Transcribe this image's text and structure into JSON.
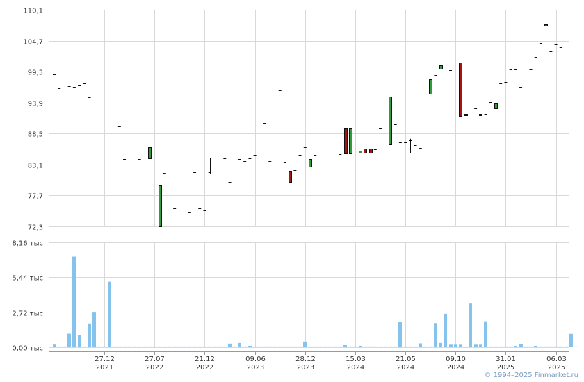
{
  "chart_data": [
    {
      "type": "candlestick",
      "ylim": [
        72.3,
        110.1
      ],
      "yticks": [
        72.3,
        77.7,
        83.1,
        88.5,
        93.9,
        99.3,
        104.7,
        110.1
      ],
      "ytick_labels": [
        "72,3",
        "77,7",
        "83,1",
        "88,5",
        "93,9",
        "99,3",
        "104,7",
        "110,1"
      ],
      "x_ticks": [
        {
          "day": "27.12",
          "year": "2021",
          "index": 10
        },
        {
          "day": "27.07",
          "year": "2022",
          "index": 20
        },
        {
          "day": "21.12",
          "year": "2022",
          "index": 30
        },
        {
          "day": "09.06",
          "year": "2023",
          "index": 40
        },
        {
          "day": "28.12",
          "year": "2023",
          "index": 50
        },
        {
          "day": "15.03",
          "year": "2024",
          "index": 60
        },
        {
          "day": "21.05",
          "year": "2024",
          "index": 70
        },
        {
          "day": "09.10",
          "year": "2024",
          "index": 80
        },
        {
          "day": "31.01",
          "year": "2025",
          "index": 90
        },
        {
          "day": "06.03",
          "year": "2025",
          "index": 100
        }
      ],
      "candles": [
        {
          "i": 0,
          "open": 98.8,
          "close": 98.8
        },
        {
          "i": 1,
          "open": 96.4,
          "close": 96.4
        },
        {
          "i": 2,
          "open": 95.0,
          "close": 95.0
        },
        {
          "i": 3,
          "open": 96.8,
          "close": 96.8
        },
        {
          "i": 4,
          "open": 96.6,
          "close": 96.6
        },
        {
          "i": 5,
          "open": 96.9,
          "close": 96.9
        },
        {
          "i": 6,
          "open": 97.2,
          "close": 97.2
        },
        {
          "i": 7,
          "open": 94.8,
          "close": 94.8
        },
        {
          "i": 8,
          "open": 93.9,
          "close": 93.9
        },
        {
          "i": 9,
          "open": 93.0,
          "close": 93.0
        },
        {
          "i": 11,
          "open": 88.7,
          "close": 88.5
        },
        {
          "i": 12,
          "open": 93.0,
          "close": 93.0
        },
        {
          "i": 13,
          "open": 89.8,
          "close": 89.8
        },
        {
          "i": 14,
          "open": 84.0,
          "close": 84.0
        },
        {
          "i": 15,
          "open": 85.1,
          "close": 85.1
        },
        {
          "i": 16,
          "open": 82.4,
          "close": 82.4
        },
        {
          "i": 17,
          "open": 84.1,
          "close": 84.1
        },
        {
          "i": 18,
          "open": 82.4,
          "close": 82.4
        },
        {
          "i": 19,
          "open": 84.2,
          "close": 86.1
        },
        {
          "i": 20,
          "open": 84.3,
          "close": 84.3
        },
        {
          "i": 21,
          "open": 72.3,
          "close": 79.4
        },
        {
          "i": 22,
          "open": 81.6,
          "close": 81.6
        },
        {
          "i": 23,
          "open": 78.4,
          "close": 78.4
        },
        {
          "i": 24,
          "open": 75.4,
          "close": 75.4
        },
        {
          "i": 25,
          "open": 78.4,
          "close": 78.4
        },
        {
          "i": 26,
          "open": 78.4,
          "close": 78.4
        },
        {
          "i": 27,
          "open": 74.8,
          "close": 74.8
        },
        {
          "i": 28,
          "open": 81.7,
          "close": 81.7
        },
        {
          "i": 29,
          "open": 75.4,
          "close": 75.4
        },
        {
          "i": 30,
          "open": 75.1,
          "close": 75.1
        },
        {
          "i": 31,
          "open": 81.7,
          "close": 81.7,
          "high": 84.3,
          "low": 81.5
        },
        {
          "i": 32,
          "open": 78.4,
          "close": 78.4
        },
        {
          "i": 33,
          "open": 76.8,
          "close": 76.8
        },
        {
          "i": 34,
          "open": 84.2,
          "close": 84.2
        },
        {
          "i": 35,
          "open": 80.1,
          "close": 80.1
        },
        {
          "i": 36,
          "open": 79.9,
          "close": 79.9
        },
        {
          "i": 37,
          "open": 84.1,
          "close": 84.1
        },
        {
          "i": 38,
          "open": 83.7,
          "close": 83.7
        },
        {
          "i": 39,
          "open": 84.2,
          "close": 84.2
        },
        {
          "i": 40,
          "open": 84.8,
          "close": 84.8
        },
        {
          "i": 41,
          "open": 84.7,
          "close": 84.7
        },
        {
          "i": 42,
          "open": 90.4,
          "close": 90.4
        },
        {
          "i": 43,
          "open": 83.7,
          "close": 83.7
        },
        {
          "i": 44,
          "open": 90.2,
          "close": 90.2
        },
        {
          "i": 45,
          "open": 96.0,
          "close": 96.0
        },
        {
          "i": 46,
          "open": 83.6,
          "close": 83.6
        },
        {
          "i": 47,
          "open": 82.0,
          "close": 80.1
        },
        {
          "i": 48,
          "open": 82.1,
          "close": 82.1
        },
        {
          "i": 49,
          "open": 84.8,
          "close": 84.8
        },
        {
          "i": 50,
          "open": 86.1,
          "close": 86.1
        },
        {
          "i": 51,
          "open": 82.8,
          "close": 84.1
        },
        {
          "i": 52,
          "open": 84.8,
          "close": 84.8
        },
        {
          "i": 53,
          "open": 85.9,
          "close": 85.9
        },
        {
          "i": 54,
          "open": 85.9,
          "close": 85.9
        },
        {
          "i": 55,
          "open": 85.9,
          "close": 85.9
        },
        {
          "i": 56,
          "open": 85.9,
          "close": 85.9
        },
        {
          "i": 57,
          "open": 84.9,
          "close": 84.9
        },
        {
          "i": 58,
          "open": 89.4,
          "close": 85.0
        },
        {
          "i": 59,
          "open": 85.0,
          "close": 89.4
        },
        {
          "i": 60,
          "open": 85.2,
          "close": 85.2
        },
        {
          "i": 61,
          "open": 85.1,
          "close": 85.5
        },
        {
          "i": 62,
          "open": 85.9,
          "close": 85.2
        },
        {
          "i": 63,
          "open": 85.9,
          "close": 85.2
        },
        {
          "i": 64,
          "open": 85.8,
          "close": 85.8
        },
        {
          "i": 65,
          "open": 89.4,
          "close": 89.4
        },
        {
          "i": 66,
          "open": 95.0,
          "close": 95.0
        },
        {
          "i": 67,
          "open": 86.6,
          "close": 95.0
        },
        {
          "i": 68,
          "open": 90.1,
          "close": 90.1
        },
        {
          "i": 69,
          "open": 86.9,
          "close": 86.9
        },
        {
          "i": 70,
          "open": 86.9,
          "close": 86.9
        },
        {
          "i": 71,
          "open": 87.3,
          "close": 87.3,
          "high": 87.6,
          "low": 85.1
        },
        {
          "i": 72,
          "open": 86.5,
          "close": 86.5
        },
        {
          "i": 73,
          "open": 86.0,
          "close": 86.0
        },
        {
          "i": 75,
          "open": 95.4,
          "close": 98.0
        },
        {
          "i": 76,
          "open": 98.7,
          "close": 98.7
        },
        {
          "i": 77,
          "open": 99.8,
          "close": 100.4
        },
        {
          "i": 78,
          "open": 99.8,
          "close": 99.8
        },
        {
          "i": 79,
          "open": 99.6,
          "close": 99.6
        },
        {
          "i": 80,
          "open": 97.0,
          "close": 97.0
        },
        {
          "i": 81,
          "open": 100.9,
          "close": 91.6
        },
        {
          "i": 82,
          "open": 91.9,
          "close": 91.6
        },
        {
          "i": 83,
          "open": 93.4,
          "close": 93.4
        },
        {
          "i": 84,
          "open": 92.9,
          "close": 92.9
        },
        {
          "i": 85,
          "open": 91.9,
          "close": 91.6
        },
        {
          "i": 86,
          "open": 91.9,
          "close": 91.9
        },
        {
          "i": 87,
          "open": 94.0,
          "close": 94.0
        },
        {
          "i": 88,
          "open": 92.9,
          "close": 93.8
        },
        {
          "i": 89,
          "open": 97.2,
          "close": 97.2
        },
        {
          "i": 90,
          "open": 97.5,
          "close": 97.5
        },
        {
          "i": 91,
          "open": 99.7,
          "close": 99.7
        },
        {
          "i": 92,
          "open": 99.7,
          "close": 99.7
        },
        {
          "i": 93,
          "open": 96.6,
          "close": 96.6
        },
        {
          "i": 94,
          "open": 97.7,
          "close": 97.7
        },
        {
          "i": 95,
          "open": 99.7,
          "close": 99.7
        },
        {
          "i": 96,
          "open": 101.9,
          "close": 101.9
        },
        {
          "i": 97,
          "open": 104.3,
          "close": 104.3
        },
        {
          "i": 98,
          "open": 107.6,
          "close": 107.3
        },
        {
          "i": 99,
          "open": 102.8,
          "close": 102.8
        },
        {
          "i": 100,
          "open": 104.0,
          "close": 104.0
        },
        {
          "i": 101,
          "open": 103.6,
          "close": 103.6
        }
      ]
    },
    {
      "type": "bar",
      "ylim": [
        0,
        8160
      ],
      "yticks": [
        0,
        2720,
        5440,
        8160
      ],
      "ytick_labels": [
        "0,00 тыс",
        "2,72 тыс",
        "5,44 тыс",
        "8,16 тыс"
      ],
      "values": [
        210,
        60,
        60,
        1050,
        7050,
        930,
        60,
        1850,
        2750,
        60,
        60,
        5100,
        60,
        60,
        60,
        60,
        60,
        60,
        60,
        60,
        60,
        60,
        60,
        60,
        60,
        60,
        60,
        60,
        60,
        60,
        60,
        60,
        60,
        60,
        60,
        280,
        60,
        330,
        60,
        110,
        60,
        60,
        60,
        60,
        60,
        60,
        60,
        60,
        60,
        60,
        440,
        60,
        60,
        60,
        60,
        60,
        60,
        60,
        160,
        60,
        60,
        110,
        60,
        60,
        60,
        60,
        60,
        60,
        60,
        1980,
        60,
        60,
        60,
        300,
        60,
        60,
        1880,
        330,
        2600,
        200,
        200,
        200,
        60,
        3450,
        200,
        200,
        2020,
        60,
        60,
        60,
        60,
        60,
        110,
        250,
        60,
        60,
        110,
        60,
        60,
        60,
        60,
        60,
        60,
        1040,
        60
      ]
    }
  ],
  "colors": {
    "up": "#2e9e3a",
    "down": "#a31616",
    "volume": "#86c3ec",
    "grid": "#d9d9d9",
    "text": "#333333",
    "copyright": "#7a9cc0"
  },
  "copyright": "© 1994–2025 Finmarket.ru"
}
